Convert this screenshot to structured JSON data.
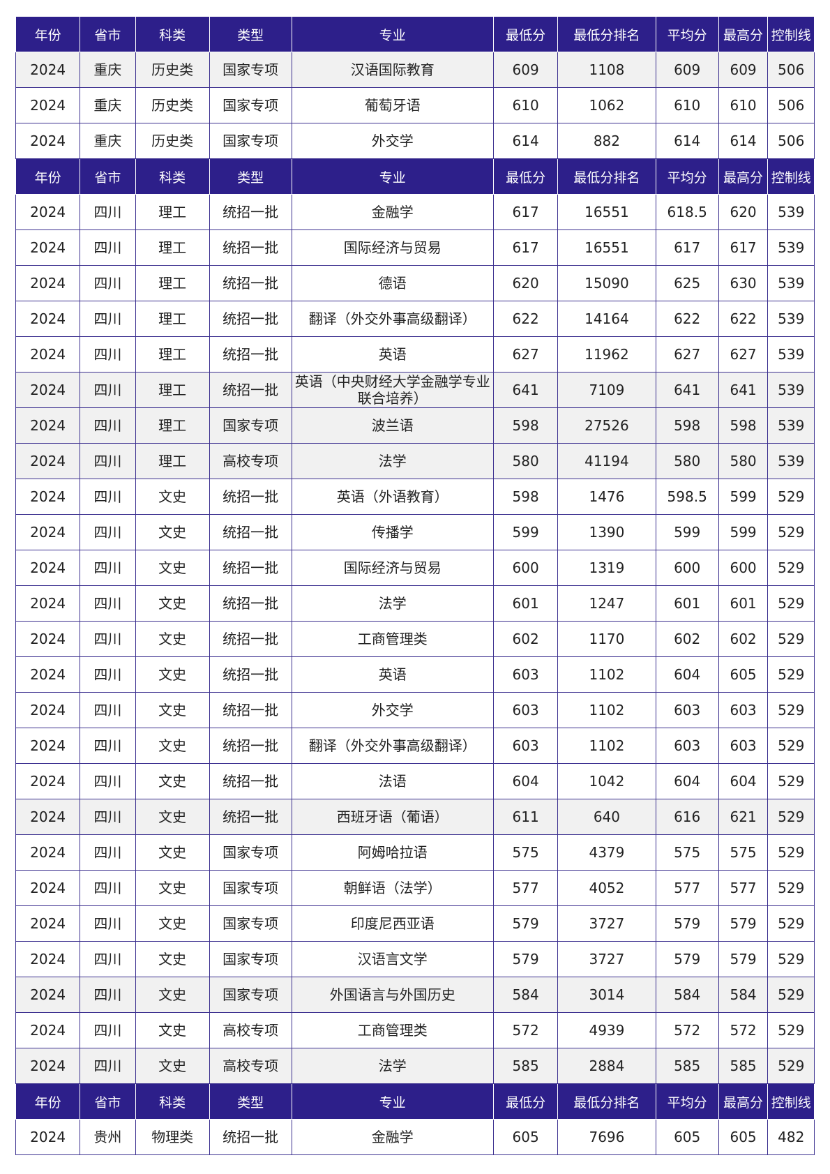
{
  "headers": [
    "年份",
    "省市",
    "科类",
    "类型",
    "专业",
    "最低分",
    "最低分排名",
    "平均分",
    "最高分",
    "控制线"
  ],
  "sections": [
    {
      "rows": [
        {
          "shade": true,
          "cells": [
            "2024",
            "重庆",
            "历史类",
            "国家专项",
            "汉语国际教育",
            "609",
            "1108",
            "609",
            "609",
            "506"
          ]
        },
        {
          "shade": false,
          "cells": [
            "2024",
            "重庆",
            "历史类",
            "国家专项",
            "葡萄牙语",
            "610",
            "1062",
            "610",
            "610",
            "506"
          ]
        },
        {
          "shade": false,
          "cells": [
            "2024",
            "重庆",
            "历史类",
            "国家专项",
            "外交学",
            "614",
            "882",
            "614",
            "614",
            "506"
          ]
        }
      ]
    },
    {
      "rows": [
        {
          "shade": false,
          "cells": [
            "2024",
            "四川",
            "理工",
            "统招一批",
            "金融学",
            "617",
            "16551",
            "618.5",
            "620",
            "539"
          ]
        },
        {
          "shade": false,
          "cells": [
            "2024",
            "四川",
            "理工",
            "统招一批",
            "国际经济与贸易",
            "617",
            "16551",
            "617",
            "617",
            "539"
          ]
        },
        {
          "shade": false,
          "cells": [
            "2024",
            "四川",
            "理工",
            "统招一批",
            "德语",
            "620",
            "15090",
            "625",
            "630",
            "539"
          ]
        },
        {
          "shade": false,
          "cells": [
            "2024",
            "四川",
            "理工",
            "统招一批",
            "翻译（外交外事高级翻译）",
            "622",
            "14164",
            "622",
            "622",
            "539"
          ]
        },
        {
          "shade": false,
          "cells": [
            "2024",
            "四川",
            "理工",
            "统招一批",
            "英语",
            "627",
            "11962",
            "627",
            "627",
            "539"
          ]
        },
        {
          "shade": true,
          "cells": [
            "2024",
            "四川",
            "理工",
            "统招一批",
            "英语（中央财经大学金融学专业联合培养）",
            "641",
            "7109",
            "641",
            "641",
            "539"
          ]
        },
        {
          "shade": true,
          "cells": [
            "2024",
            "四川",
            "理工",
            "国家专项",
            "波兰语",
            "598",
            "27526",
            "598",
            "598",
            "539"
          ]
        },
        {
          "shade": true,
          "cells": [
            "2024",
            "四川",
            "理工",
            "高校专项",
            "法学",
            "580",
            "41194",
            "580",
            "580",
            "539"
          ]
        },
        {
          "shade": false,
          "cells": [
            "2024",
            "四川",
            "文史",
            "统招一批",
            "英语（外语教育）",
            "598",
            "1476",
            "598.5",
            "599",
            "529"
          ]
        },
        {
          "shade": false,
          "cells": [
            "2024",
            "四川",
            "文史",
            "统招一批",
            "传播学",
            "599",
            "1390",
            "599",
            "599",
            "529"
          ]
        },
        {
          "shade": false,
          "cells": [
            "2024",
            "四川",
            "文史",
            "统招一批",
            "国际经济与贸易",
            "600",
            "1319",
            "600",
            "600",
            "529"
          ]
        },
        {
          "shade": false,
          "cells": [
            "2024",
            "四川",
            "文史",
            "统招一批",
            "法学",
            "601",
            "1247",
            "601",
            "601",
            "529"
          ]
        },
        {
          "shade": false,
          "cells": [
            "2024",
            "四川",
            "文史",
            "统招一批",
            "工商管理类",
            "602",
            "1170",
            "602",
            "602",
            "529"
          ]
        },
        {
          "shade": false,
          "cells": [
            "2024",
            "四川",
            "文史",
            "统招一批",
            "英语",
            "603",
            "1102",
            "604",
            "605",
            "529"
          ]
        },
        {
          "shade": false,
          "cells": [
            "2024",
            "四川",
            "文史",
            "统招一批",
            "外交学",
            "603",
            "1102",
            "603",
            "603",
            "529"
          ]
        },
        {
          "shade": false,
          "cells": [
            "2024",
            "四川",
            "文史",
            "统招一批",
            "翻译（外交外事高级翻译）",
            "603",
            "1102",
            "603",
            "603",
            "529"
          ]
        },
        {
          "shade": false,
          "cells": [
            "2024",
            "四川",
            "文史",
            "统招一批",
            "法语",
            "604",
            "1042",
            "604",
            "604",
            "529"
          ]
        },
        {
          "shade": true,
          "cells": [
            "2024",
            "四川",
            "文史",
            "统招一批",
            "西班牙语（葡语）",
            "611",
            "640",
            "616",
            "621",
            "529"
          ]
        },
        {
          "shade": false,
          "cells": [
            "2024",
            "四川",
            "文史",
            "国家专项",
            "阿姆哈拉语",
            "575",
            "4379",
            "575",
            "575",
            "529"
          ]
        },
        {
          "shade": false,
          "cells": [
            "2024",
            "四川",
            "文史",
            "国家专项",
            "朝鲜语（法学）",
            "577",
            "4052",
            "577",
            "577",
            "529"
          ]
        },
        {
          "shade": false,
          "cells": [
            "2024",
            "四川",
            "文史",
            "国家专项",
            "印度尼西亚语",
            "579",
            "3727",
            "579",
            "579",
            "529"
          ]
        },
        {
          "shade": false,
          "cells": [
            "2024",
            "四川",
            "文史",
            "国家专项",
            "汉语言文学",
            "579",
            "3727",
            "579",
            "579",
            "529"
          ]
        },
        {
          "shade": true,
          "cells": [
            "2024",
            "四川",
            "文史",
            "国家专项",
            "外国语言与外国历史",
            "584",
            "3014",
            "584",
            "584",
            "529"
          ]
        },
        {
          "shade": false,
          "cells": [
            "2024",
            "四川",
            "文史",
            "高校专项",
            "工商管理类",
            "572",
            "4939",
            "572",
            "572",
            "529"
          ]
        },
        {
          "shade": true,
          "cells": [
            "2024",
            "四川",
            "文史",
            "高校专项",
            "法学",
            "585",
            "2884",
            "585",
            "585",
            "529"
          ]
        }
      ]
    },
    {
      "rows": [
        {
          "shade": false,
          "cells": [
            "2024",
            "贵州",
            "物理类",
            "统招一批",
            "金融学",
            "605",
            "7696",
            "605",
            "605",
            "482"
          ]
        }
      ]
    }
  ],
  "colors": {
    "header_bg": "#2d1f8a",
    "header_text": "#ffffff",
    "border": "#3b2f8f",
    "row_shade": "#f1f1f1"
  }
}
